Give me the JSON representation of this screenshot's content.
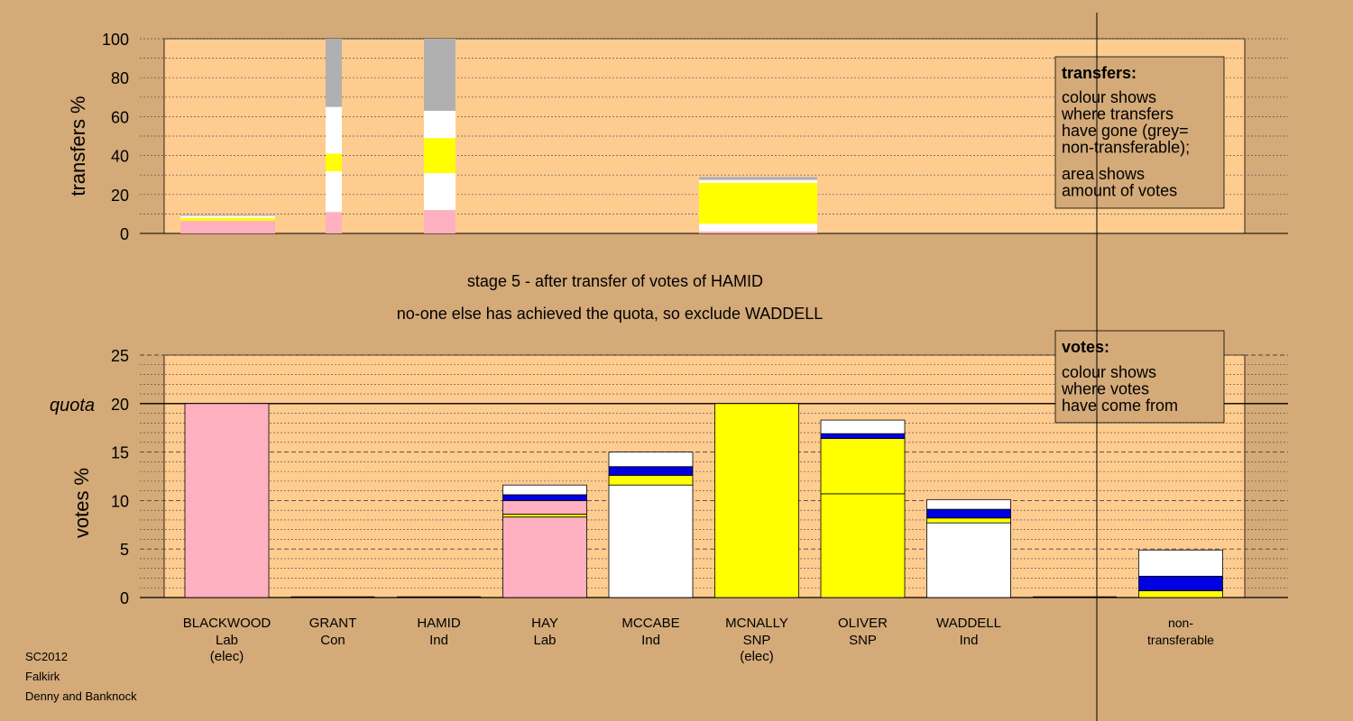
{
  "colors": {
    "background": "#d4aa78",
    "plot": "#ffcc90",
    "Lab": "#ffb0c0",
    "Con": "#ffffff",
    "Ind": "#ffffff",
    "SNP": "#ffff00",
    "blue": "#0000e0",
    "grey": "#b0b0b0"
  },
  "chart_data": [
    {
      "type": "bar",
      "ylabel": "transfers %",
      "ylim": [
        0,
        100
      ],
      "yticks": [
        0,
        20,
        40,
        60,
        80,
        100
      ],
      "legend": {
        "title": "transfers:",
        "lines1": [
          "colour shows",
          "where transfers",
          "have gone (grey=",
          "non-transferable);"
        ],
        "lines2": [
          "area shows",
          "amount of votes"
        ]
      },
      "bars": [
        {
          "candidate": "BLACKWOOD",
          "segments": [
            {
              "color": "Lab",
              "value": 6.5
            },
            {
              "color": "SNP",
              "value": 1.5
            },
            {
              "color": "Ind",
              "value": 1.0
            },
            {
              "color": "grey",
              "value": 0.5
            }
          ]
        },
        {
          "candidate": "GRANT",
          "segments": [
            {
              "color": "Lab",
              "value": 11
            },
            {
              "color": "Ind",
              "value": 21
            },
            {
              "color": "SNP",
              "value": 9
            },
            {
              "color": "Ind",
              "value": 24
            },
            {
              "color": "grey",
              "value": 35
            }
          ]
        },
        {
          "candidate": "HAMID",
          "segments": [
            {
              "color": "Lab",
              "value": 12
            },
            {
              "color": "Ind",
              "value": 19
            },
            {
              "color": "SNP",
              "value": 18
            },
            {
              "color": "Ind",
              "value": 14
            },
            {
              "color": "grey",
              "value": 37
            }
          ]
        },
        {
          "candidate": "MCNALLY",
          "segments": [
            {
              "color": "Lab",
              "value": 1
            },
            {
              "color": "Ind",
              "value": 4
            },
            {
              "color": "SNP",
              "value": 21
            },
            {
              "color": "Ind",
              "value": 1.5
            },
            {
              "color": "grey",
              "value": 1.5
            }
          ]
        }
      ]
    },
    {
      "type": "bar",
      "title": "stage 5 - after transfer of votes of HAMID",
      "subtitle": "no-one else has achieved the quota, so exclude WADDELL",
      "ylabel": "votes %",
      "ylim": [
        0,
        25
      ],
      "yticks": [
        0,
        5,
        10,
        15,
        20,
        25
      ],
      "quota": 20,
      "quota_label": "quota",
      "legend": {
        "title": "votes:",
        "lines1": [
          "colour shows",
          "where votes",
          "have come from"
        ]
      },
      "categories": [
        {
          "name": "BLACKWOOD",
          "party": "Lab",
          "note": "(elec)"
        },
        {
          "name": "GRANT",
          "party": "Con",
          "note": ""
        },
        {
          "name": "HAMID",
          "party": "Ind",
          "note": ""
        },
        {
          "name": "HAY",
          "party": "Lab",
          "note": ""
        },
        {
          "name": "MCCABE",
          "party": "Ind",
          "note": ""
        },
        {
          "name": "MCNALLY",
          "party": "SNP",
          "note": "(elec)"
        },
        {
          "name": "OLIVER",
          "party": "SNP",
          "note": ""
        },
        {
          "name": "WADDELL",
          "party": "Ind",
          "note": ""
        },
        {
          "name": "",
          "party": "",
          "note": ""
        },
        {
          "name": "non-",
          "party": "transferable",
          "note": ""
        }
      ],
      "bars": [
        {
          "segments": [
            {
              "color": "Lab",
              "value": 20
            }
          ]
        },
        {
          "segments": []
        },
        {
          "segments": []
        },
        {
          "segments": [
            {
              "color": "Lab",
              "value": 8.3
            },
            {
              "color": "SNP",
              "value": 0.3
            },
            {
              "color": "Lab",
              "value": 1.4
            },
            {
              "color": "blue",
              "value": 0.6
            },
            {
              "color": "Ind",
              "value": 1.0
            }
          ]
        },
        {
          "segments": [
            {
              "color": "Ind",
              "value": 11.6
            },
            {
              "color": "SNP",
              "value": 1.0
            },
            {
              "color": "blue",
              "value": 0.9
            },
            {
              "color": "Ind",
              "value": 1.5
            }
          ]
        },
        {
          "segments": [
            {
              "color": "SNP",
              "value": 20
            }
          ]
        },
        {
          "segments": [
            {
              "color": "SNP",
              "value": 10.7
            },
            {
              "color": "SNP",
              "value": 5.7
            },
            {
              "color": "blue",
              "value": 0.5
            },
            {
              "color": "Ind",
              "value": 1.4
            }
          ]
        },
        {
          "segments": [
            {
              "color": "Ind",
              "value": 7.7
            },
            {
              "color": "SNP",
              "value": 0.5
            },
            {
              "color": "blue",
              "value": 0.9
            },
            {
              "color": "Ind",
              "value": 1.0
            }
          ]
        },
        {
          "segments": []
        },
        {
          "segments": [
            {
              "color": "SNP",
              "value": 0.7
            },
            {
              "color": "blue",
              "value": 1.5
            },
            {
              "color": "Ind",
              "value": 2.7
            }
          ]
        }
      ]
    }
  ],
  "footer": [
    "SC2012",
    "Falkirk",
    "Denny and Banknock"
  ]
}
